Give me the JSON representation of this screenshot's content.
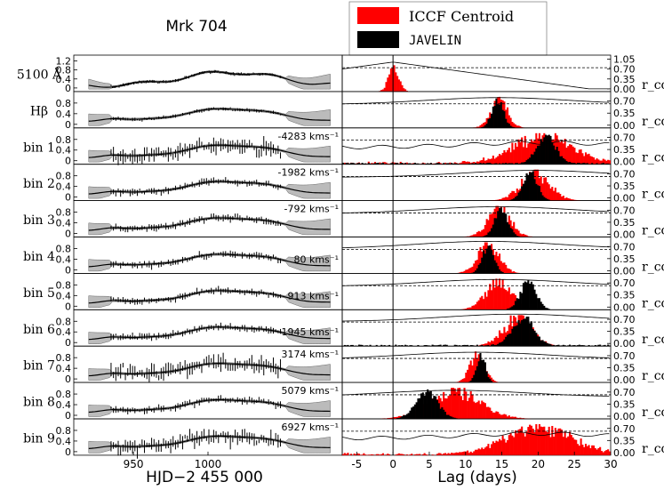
{
  "chart_data": {
    "type": "multi-panel light curves and lag distributions",
    "title": "Mrk 704",
    "left_xlabel": "HJD−2 455 000",
    "right_xlabel": "Lag (days)",
    "right_ylabel": "r_cc",
    "left_xlim": [
      910,
      1090
    ],
    "left_xticks": [
      950,
      1000
    ],
    "left_yticks": [
      0.0,
      0.4,
      0.8
    ],
    "left_yticks_top": [
      0.0,
      0.4,
      0.8,
      1.2
    ],
    "right_xlim": [
      -7,
      30
    ],
    "right_xticks": [
      -5,
      0,
      5,
      10,
      15,
      20,
      25,
      30
    ],
    "rcc_ticks": [
      "0.00",
      "0.35",
      "0.70"
    ],
    "rcc_ticks_top": [
      "0.00",
      "0.35",
      "0.70",
      "1.05"
    ],
    "legend": [
      {
        "label": "ICCF Centroid",
        "color": "#ff0000"
      },
      {
        "label": "JAVELIN",
        "color": "#000000"
      }
    ],
    "rows": [
      {
        "label": "5100 Å",
        "velocity": "",
        "iccf_center": 0.0,
        "iccf_width": 0.7,
        "javelin_center": null,
        "javelin_width": null,
        "rcc_peak": 0.95
      },
      {
        "label": "Hβ",
        "velocity": "",
        "iccf_center": 14.5,
        "iccf_width": 1.2,
        "javelin_center": 14.3,
        "javelin_width": 0.8,
        "rcc_peak": 0.8
      },
      {
        "label": "bin 1",
        "velocity": "-4283 kms⁻¹",
        "iccf_center": 20.5,
        "iccf_width": 4.0,
        "javelin_center": 21.0,
        "javelin_width": 1.3,
        "rcc_peak": 0.55
      },
      {
        "label": "bin 2",
        "velocity": "-1982 kms⁻¹",
        "iccf_center": 19.5,
        "iccf_width": 2.0,
        "javelin_center": 18.8,
        "javelin_width": 1.0,
        "rcc_peak": 0.8
      },
      {
        "label": "bin 3",
        "velocity": "-792 kms⁻¹",
        "iccf_center": 14.5,
        "iccf_width": 1.6,
        "javelin_center": 14.8,
        "javelin_width": 0.9,
        "rcc_peak": 0.8
      },
      {
        "label": "bin 4",
        "velocity": "80 kms⁻¹",
        "iccf_center": 13.0,
        "iccf_width": 1.5,
        "javelin_center": 13.0,
        "javelin_width": 0.8,
        "rcc_peak": 0.85
      },
      {
        "label": "bin 5",
        "velocity": "913 kms⁻¹",
        "iccf_center": 14.5,
        "iccf_width": 1.8,
        "javelin_center": 18.5,
        "javelin_width": 1.1,
        "rcc_peak": 0.8
      },
      {
        "label": "bin 6",
        "velocity": "1945 kms⁻¹",
        "iccf_center": 17.0,
        "iccf_width": 2.0,
        "javelin_center": 17.8,
        "javelin_width": 1.5,
        "rcc_peak": 0.85
      },
      {
        "label": "bin 7",
        "velocity": "3174 kms⁻¹",
        "iccf_center": 11.5,
        "iccf_width": 1.0,
        "javelin_center": 12.0,
        "javelin_width": 0.6,
        "rcc_peak": 0.8
      },
      {
        "label": "bin 8",
        "velocity": "5079 kms⁻¹",
        "iccf_center": 8.5,
        "iccf_width": 3.5,
        "javelin_center": 4.5,
        "javelin_width": 1.5,
        "rcc_peak": 0.75
      },
      {
        "label": "bin 9",
        "velocity": "6927 kms⁻¹",
        "iccf_center": 20.0,
        "iccf_width": 4.5,
        "javelin_center": null,
        "javelin_width": null,
        "rcc_peak": 0.55
      }
    ]
  }
}
